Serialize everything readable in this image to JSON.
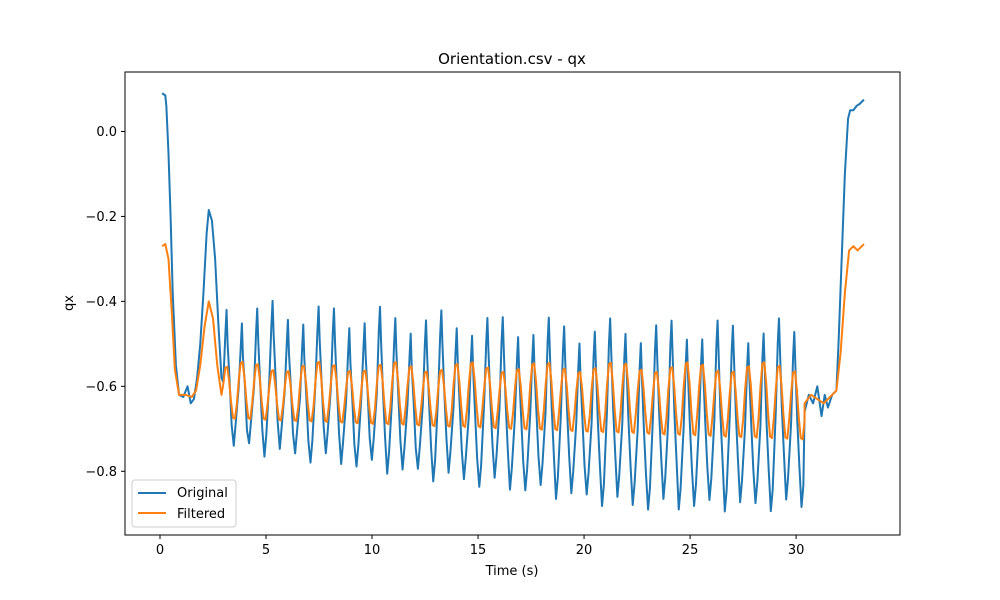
{
  "chart_data": {
    "type": "line",
    "title": "Orientation.csv - qx",
    "xlabel": "Time (s)",
    "ylabel": "qx",
    "xlim": [
      -1.65,
      34.9
    ],
    "ylim": [
      -0.95,
      0.14
    ],
    "xticks": [
      0,
      5,
      10,
      15,
      20,
      25,
      30
    ],
    "yticks": [
      0.0,
      -0.2,
      -0.4,
      -0.6,
      -0.8
    ],
    "ytick_labels": [
      "0.0",
      "−0.2",
      "−0.4",
      "−0.6",
      "−0.8"
    ],
    "grid": false,
    "legend_position": "lower-left",
    "oscillation": {
      "start_s": 2.9,
      "end_s": 30.4,
      "period_s": 0.72,
      "original_peak_range": [
        -0.48,
        -0.53
      ],
      "original_trough_range": [
        -0.74,
        -0.88
      ],
      "filtered_peak": -0.55,
      "filtered_trough_range": [
        -0.68,
        -0.73
      ]
    },
    "series": [
      {
        "name": "Original",
        "color": "#1f77b4",
        "points": [
          [
            0.1,
            0.09
          ],
          [
            0.25,
            0.085
          ],
          [
            0.3,
            0.06
          ],
          [
            0.4,
            -0.05
          ],
          [
            0.5,
            -0.2
          ],
          [
            0.6,
            -0.38
          ],
          [
            0.75,
            -0.55
          ],
          [
            0.9,
            -0.62
          ],
          [
            1.1,
            -0.625
          ],
          [
            1.3,
            -0.6
          ],
          [
            1.45,
            -0.64
          ],
          [
            1.6,
            -0.63
          ],
          [
            1.75,
            -0.58
          ],
          [
            1.9,
            -0.5
          ],
          [
            2.05,
            -0.38
          ],
          [
            2.2,
            -0.24
          ],
          [
            2.3,
            -0.185
          ],
          [
            2.45,
            -0.21
          ],
          [
            2.6,
            -0.3
          ],
          [
            2.75,
            -0.45
          ],
          [
            2.9,
            -0.58
          ]
        ]
      },
      {
        "name": "Filtered",
        "color": "#ff7f0e",
        "points": [
          [
            0.1,
            -0.27
          ],
          [
            0.25,
            -0.265
          ],
          [
            0.4,
            -0.3
          ],
          [
            0.55,
            -0.42
          ],
          [
            0.7,
            -0.56
          ],
          [
            0.9,
            -0.62
          ],
          [
            1.2,
            -0.62
          ],
          [
            1.5,
            -0.625
          ],
          [
            1.7,
            -0.61
          ],
          [
            1.9,
            -0.55
          ],
          [
            2.1,
            -0.46
          ],
          [
            2.3,
            -0.4
          ],
          [
            2.5,
            -0.44
          ],
          [
            2.7,
            -0.55
          ],
          [
            2.9,
            -0.62
          ]
        ]
      }
    ],
    "tail": {
      "original": [
        [
          30.4,
          -0.66
        ],
        [
          30.6,
          -0.62
        ],
        [
          30.8,
          -0.64
        ],
        [
          31.0,
          -0.6
        ],
        [
          31.2,
          -0.67
        ],
        [
          31.35,
          -0.62
        ],
        [
          31.5,
          -0.65
        ],
        [
          31.7,
          -0.62
        ],
        [
          31.9,
          -0.61
        ],
        [
          32.0,
          -0.5
        ],
        [
          32.15,
          -0.3
        ],
        [
          32.3,
          -0.1
        ],
        [
          32.45,
          0.03
        ],
        [
          32.55,
          0.05
        ],
        [
          32.7,
          0.05
        ],
        [
          32.85,
          0.06
        ],
        [
          33.0,
          0.065
        ],
        [
          33.2,
          0.075
        ]
      ],
      "filtered": [
        [
          30.4,
          -0.64
        ],
        [
          30.7,
          -0.62
        ],
        [
          31.0,
          -0.63
        ],
        [
          31.3,
          -0.64
        ],
        [
          31.6,
          -0.625
        ],
        [
          31.9,
          -0.61
        ],
        [
          32.1,
          -0.52
        ],
        [
          32.3,
          -0.38
        ],
        [
          32.5,
          -0.28
        ],
        [
          32.7,
          -0.27
        ],
        [
          32.9,
          -0.28
        ],
        [
          33.2,
          -0.265
        ]
      ]
    }
  }
}
